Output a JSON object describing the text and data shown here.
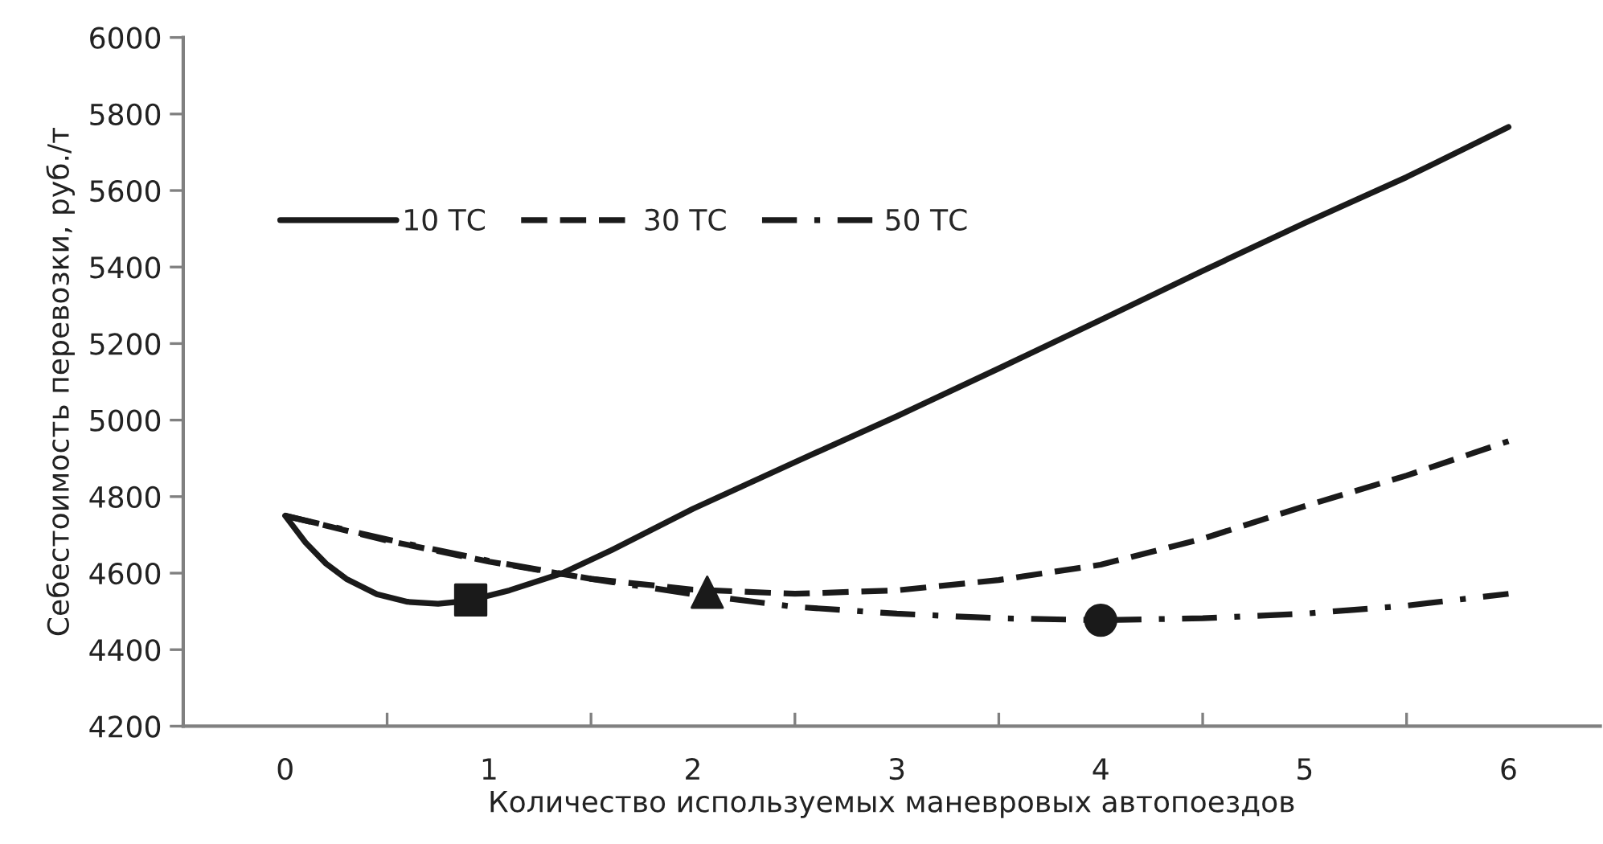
{
  "chart_data": {
    "type": "line",
    "xlabel": "Количество используемых маневровых автопоездов",
    "ylabel": "Себестоимость перевозки, руб./т",
    "xlim": [
      -0.5,
      6.45
    ],
    "xticks": [
      {
        "value": -0.5,
        "label": null
      },
      0,
      {
        "value": 0.5,
        "label": null
      },
      1,
      {
        "value": 1.5,
        "label": null
      },
      2,
      {
        "value": 2.5,
        "label": null
      },
      3,
      {
        "value": 3.5,
        "label": null
      },
      4,
      {
        "value": 4.5,
        "label": null
      },
      5,
      {
        "value": 5.5,
        "label": null
      },
      6
    ],
    "ylim": [
      4200,
      6000
    ],
    "yticks": [
      4200,
      4400,
      4600,
      4800,
      5000,
      5200,
      5400,
      5600,
      5800,
      6000
    ],
    "grid": false,
    "legend": "top left",
    "series": [
      {
        "name": "10 ТС",
        "color": "#1a1a1a",
        "line_style": "solid",
        "x": [
          0,
          0.1,
          0.2,
          0.3,
          0.45,
          0.6,
          0.75,
          0.9,
          1.1,
          1.36,
          1.6,
          2,
          2.5,
          3,
          3.5,
          4,
          4.5,
          5,
          5.5,
          6
        ],
        "values": [
          4750,
          4680,
          4625,
          4585,
          4545,
          4525,
          4520,
          4528,
          4555,
          4600,
          4660,
          4768,
          4890,
          5010,
          5135,
          5262,
          5390,
          5515,
          5635,
          5766
        ]
      },
      {
        "name": "30 ТС",
        "color": "#1a1a1a",
        "line_style": "dashed",
        "x": [
          0,
          0.5,
          1,
          1.5,
          2,
          2.5,
          3,
          3.5,
          4,
          4.5,
          5,
          5.5,
          6
        ],
        "values": [
          4750,
          4685,
          4630,
          4585,
          4557,
          4546,
          4555,
          4582,
          4622,
          4690,
          4775,
          4855,
          4945
        ]
      },
      {
        "name": "50 ТС",
        "color": "#1a1a1a",
        "line_style": "dashdot",
        "x": [
          0,
          0.5,
          1,
          1.5,
          2,
          2.5,
          3,
          3.5,
          4,
          4.5,
          5,
          5.5,
          6
        ],
        "values": [
          4750,
          4688,
          4632,
          4585,
          4545,
          4512,
          4494,
          4482,
          4477,
          4482,
          4494,
          4515,
          4546
        ]
      },
      {
        "type": "scatter",
        "marker": "square",
        "color": "#1a1a1a",
        "x": [
          0.91
        ],
        "values": [
          4530
        ]
      },
      {
        "type": "scatter",
        "marker": "triangle",
        "color": "#1a1a1a",
        "x": [
          2.07
        ],
        "values": [
          4550
        ]
      },
      {
        "type": "scatter",
        "marker": "circle",
        "color": "#1a1a1a",
        "x": [
          4.0
        ],
        "values": [
          4477
        ]
      }
    ]
  }
}
